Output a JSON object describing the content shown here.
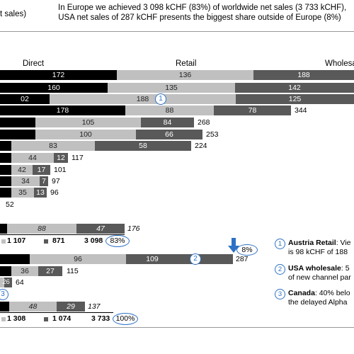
{
  "header": {
    "left_text": "t sales)",
    "right_line1": "In Europe we achieved 3 098 kCHF (83%) of worldwide net sales (3 733 kCHF),",
    "right_line2": "USA net sales of 287 kCHF presents the biggest share outside of Europe (8%)"
  },
  "colors": {
    "direct": "#000000",
    "retail": "#c0c0c0",
    "wholesale": "#595959",
    "accent": "#2f72c5"
  },
  "chart_data": {
    "type": "bar",
    "stacked": true,
    "orientation": "horizontal",
    "series_headers": [
      "Direct",
      "Retail",
      "Wholesale"
    ],
    "rows": [
      {
        "direct": "172",
        "retail": "136",
        "wholesale": "188",
        "total": ""
      },
      {
        "direct": "160",
        "retail": "135",
        "wholesale": "142",
        "total": ""
      },
      {
        "direct": "02",
        "retail": "188",
        "wholesale": "125",
        "total": "",
        "marker": "1"
      },
      {
        "direct": "178",
        "retail": "88",
        "wholesale": "78",
        "total": "344"
      },
      {
        "direct": "",
        "retail": "105",
        "wholesale": "84",
        "total": "268"
      },
      {
        "direct": "",
        "retail": "100",
        "wholesale": "66",
        "total": "253"
      },
      {
        "direct": "",
        "retail": "83",
        "wholesale": "58",
        "total": "224"
      },
      {
        "direct": "",
        "retail": "44",
        "wholesale": "12",
        "total": "117"
      },
      {
        "direct": "",
        "retail": "42",
        "wholesale": "17",
        "total": "101"
      },
      {
        "direct": "",
        "retail": "34",
        "wholesale": "7",
        "total": "97"
      },
      {
        "direct": "",
        "retail": "35",
        "wholesale": "13",
        "total": "96"
      },
      {
        "direct": "",
        "retail": "",
        "wholesale": "",
        "total": "52"
      }
    ],
    "europe_other": {
      "retail": "88",
      "wholesale": "47",
      "total": "176"
    },
    "europe_sum": {
      "retail": "1 107",
      "wholesale": "871",
      "total": "3 098",
      "share": "83%"
    },
    "usa": {
      "retail": "96",
      "wholesale": "109",
      "total": "287",
      "marker": "2",
      "share": "8%"
    },
    "row_b": {
      "retail": "36",
      "wholesale": "27",
      "total": "115"
    },
    "row_c": {
      "wholesale": "26",
      "total": "64"
    },
    "row_c_marker": "3",
    "world_other": {
      "retail": "48",
      "wholesale": "29",
      "total": "137"
    },
    "world_sum": {
      "retail": "1 308",
      "wholesale": "1 074",
      "total": "3 733",
      "share": "100%"
    }
  },
  "notes": [
    {
      "num": "1",
      "bold": "Austria Retail",
      "line1": ": Vie",
      "line2": "is 98 kCHF of 188"
    },
    {
      "num": "2",
      "bold": "USA wholesale",
      "line1": ": 5",
      "line2": "of new channel par"
    },
    {
      "num": "3",
      "bold": "Canada",
      "line1": ": 40% belo",
      "line2": "the delayed Alpha"
    }
  ]
}
